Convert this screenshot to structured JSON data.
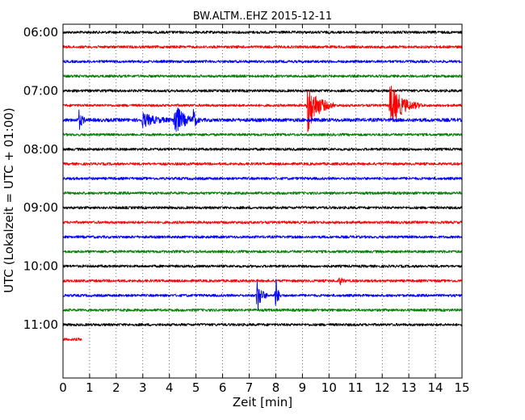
{
  "chart_data": {
    "type": "line",
    "title": "BW.ALTM..EHZ 2015-12-11",
    "xlabel": "Zeit  [min]",
    "ylabel": "UTC (Lokalzeit = UTC + 01:00)",
    "xlim": [
      0,
      15
    ],
    "x_ticks": [
      "0",
      "1",
      "2",
      "3",
      "4",
      "5",
      "6",
      "7",
      "8",
      "9",
      "10",
      "11",
      "12",
      "13",
      "14",
      "15"
    ],
    "y_tick_labels": [
      "06:00",
      "07:00",
      "08:00",
      "09:00",
      "10:00",
      "11:00"
    ],
    "trace_interval_min": 15,
    "first_trace": "06:00",
    "grid": "vertical dotted at each minute",
    "colors": [
      "#000000",
      "#ff0000",
      "#0000ff",
      "#008000"
    ],
    "traces": [
      {
        "start": "06:00",
        "color": "#000000",
        "amp": 0.3,
        "events": []
      },
      {
        "start": "06:15",
        "color": "#ff0000",
        "amp": 0.3,
        "events": []
      },
      {
        "start": "06:30",
        "color": "#0000ff",
        "amp": 0.3,
        "events": []
      },
      {
        "start": "06:45",
        "color": "#008000",
        "amp": 0.3,
        "events": []
      },
      {
        "start": "07:00",
        "color": "#000000",
        "amp": 0.3,
        "events": []
      },
      {
        "start": "07:15",
        "color": "#ff0000",
        "amp": 0.3,
        "events": [
          {
            "t": 9.2,
            "amp": 6,
            "dur": 1.0
          },
          {
            "t": 12.3,
            "amp": 5,
            "dur": 1.2
          }
        ]
      },
      {
        "start": "07:30",
        "color": "#0000ff",
        "amp": 0.4,
        "events": [
          {
            "t": 0.6,
            "amp": 2.2,
            "dur": 0.3
          },
          {
            "t": 3.0,
            "amp": 1.5,
            "dur": 1.2
          },
          {
            "t": 4.2,
            "amp": 4,
            "dur": 0.8
          },
          {
            "t": 4.9,
            "amp": 2,
            "dur": 0.3
          }
        ]
      },
      {
        "start": "07:45",
        "color": "#008000",
        "amp": 0.3,
        "events": []
      },
      {
        "start": "08:00",
        "color": "#000000",
        "amp": 0.3,
        "events": []
      },
      {
        "start": "08:15",
        "color": "#ff0000",
        "amp": 0.3,
        "events": []
      },
      {
        "start": "08:30",
        "color": "#0000ff",
        "amp": 0.3,
        "events": []
      },
      {
        "start": "08:45",
        "color": "#008000",
        "amp": 0.3,
        "events": []
      },
      {
        "start": "09:00",
        "color": "#000000",
        "amp": 0.3,
        "events": []
      },
      {
        "start": "09:15",
        "color": "#ff0000",
        "amp": 0.3,
        "events": []
      },
      {
        "start": "09:30",
        "color": "#0000ff",
        "amp": 0.3,
        "events": []
      },
      {
        "start": "09:45",
        "color": "#008000",
        "amp": 0.3,
        "events": []
      },
      {
        "start": "10:00",
        "color": "#000000",
        "amp": 0.3,
        "events": []
      },
      {
        "start": "10:15",
        "color": "#ff0000",
        "amp": 0.3,
        "events": [
          {
            "t": 10.4,
            "amp": 0.9,
            "dur": 0.3
          }
        ]
      },
      {
        "start": "10:30",
        "color": "#0000ff",
        "amp": 0.3,
        "events": [
          {
            "t": 7.3,
            "amp": 4,
            "dur": 0.4
          },
          {
            "t": 8.0,
            "amp": 4.5,
            "dur": 0.2
          }
        ]
      },
      {
        "start": "10:45",
        "color": "#008000",
        "amp": 0.3,
        "events": []
      },
      {
        "start": "11:00",
        "color": "#000000",
        "amp": 0.3,
        "events": []
      },
      {
        "start": "11:15",
        "color": "#ff0000",
        "amp": 0.3,
        "end": 0.7,
        "events": []
      }
    ]
  }
}
